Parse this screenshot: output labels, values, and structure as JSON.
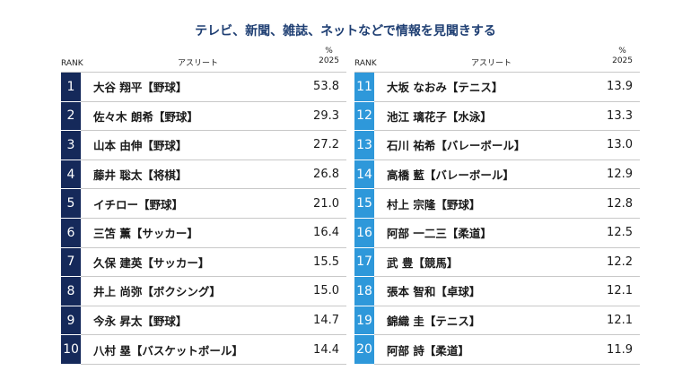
{
  "chart_data": {
    "type": "table",
    "title": "テレビ、新聞、雑誌、ネットなどで情報を見聞きする",
    "columns": {
      "rank": "RANK",
      "athlete": "アスリート",
      "percent_unit": "%",
      "year": "2025"
    },
    "rows": [
      {
        "rank": "1",
        "name": "大谷 翔平【野球】",
        "value": "53.8"
      },
      {
        "rank": "2",
        "name": "佐々木 朗希【野球】",
        "value": "29.3"
      },
      {
        "rank": "3",
        "name": "山本 由伸【野球】",
        "value": "27.2"
      },
      {
        "rank": "4",
        "name": "藤井 聡太【将棋】",
        "value": "26.8"
      },
      {
        "rank": "5",
        "name": "イチロー【野球】",
        "value": "21.0"
      },
      {
        "rank": "6",
        "name": "三笘 薫【サッカー】",
        "value": "16.4"
      },
      {
        "rank": "7",
        "name": "久保 建英【サッカー】",
        "value": "15.5"
      },
      {
        "rank": "8",
        "name": "井上 尚弥【ボクシング】",
        "value": "15.0"
      },
      {
        "rank": "9",
        "name": "今永 昇太【野球】",
        "value": "14.7"
      },
      {
        "rank": "10",
        "name": "八村 塁【バスケットボール】",
        "value": "14.4"
      },
      {
        "rank": "11",
        "name": "大坂 なおみ【テニス】",
        "value": "13.9"
      },
      {
        "rank": "12",
        "name": "池江 璃花子【水泳】",
        "value": "13.3"
      },
      {
        "rank": "13",
        "name": "石川 祐希【バレーボール】",
        "value": "13.0"
      },
      {
        "rank": "14",
        "name": "高橋 藍【バレーボール】",
        "value": "12.9"
      },
      {
        "rank": "15",
        "name": "村上 宗隆【野球】",
        "value": "12.8"
      },
      {
        "rank": "16",
        "name": "阿部 一二三【柔道】",
        "value": "12.5"
      },
      {
        "rank": "17",
        "name": "武 豊【競馬】",
        "value": "12.2"
      },
      {
        "rank": "18",
        "name": "張本 智和【卓球】",
        "value": "12.1"
      },
      {
        "rank": "19",
        "name": "錦織 圭【テニス】",
        "value": "12.1"
      },
      {
        "rank": "20",
        "name": "阿部 詩【柔道】",
        "value": "11.9"
      }
    ]
  },
  "colors": {
    "title": "#1f3f73",
    "rank_1_10": "#15295a",
    "rank_11_20": "#2e98da"
  }
}
